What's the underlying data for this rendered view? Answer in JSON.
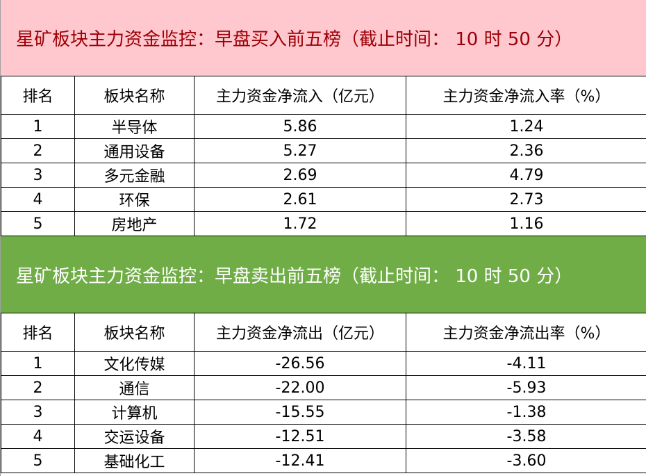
{
  "buy": {
    "title": "星矿板块主力资金监控：早盘买入前五榜（截止时间： 10 时 50 分）",
    "title_bg": "#ffc7ce",
    "title_color": "#9c0006",
    "headers": [
      "排名",
      "板块名称",
      "主力资金净流入（亿元）",
      "主力资金净流入率（%）"
    ],
    "rows": [
      [
        "1",
        "半导体",
        "5.86",
        "1.24"
      ],
      [
        "2",
        "通用设备",
        "5.27",
        "2.36"
      ],
      [
        "3",
        "多元金融",
        "2.69",
        "4.79"
      ],
      [
        "4",
        "环保",
        "2.61",
        "2.73"
      ],
      [
        "5",
        "房地产",
        "1.72",
        "1.16"
      ]
    ]
  },
  "sell": {
    "title": "星矿板块主力资金监控：早盘卖出前五榜（截止时间： 10 时 50 分）",
    "title_bg": "#70ad47",
    "title_color": "#ffffff",
    "headers": [
      "排名",
      "板块名称",
      "主力资金净流出（亿元）",
      "主力资金净流出率（%）"
    ],
    "rows": [
      [
        "1",
        "文化传媒",
        "-26.56",
        "-4.11"
      ],
      [
        "2",
        "通信",
        "-22.00",
        "-5.93"
      ],
      [
        "3",
        "计算机",
        "-15.55",
        "-1.38"
      ],
      [
        "4",
        "交运设备",
        "-12.51",
        "-3.58"
      ],
      [
        "5",
        "基础化工",
        "-12.41",
        "-3.60"
      ]
    ]
  }
}
